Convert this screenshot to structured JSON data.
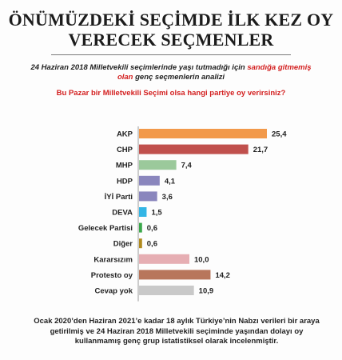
{
  "header": {
    "title_line1": "ÖNÜMÜZDEKİ SEÇİMDE İLK KEZ OY",
    "title_line2": "VERECEK SEÇMENLER",
    "subtitle_part1": "24 Haziran  2018 Milletvekili seçimlerinde yaşı tutmadığı için ",
    "subtitle_highlight": "sandığa gitmemiş olan",
    "subtitle_part2": " genç seçmenlerin analizi",
    "question": "Bu Pazar bir Milletvekili Seçimi olsa hangi partiye oy verirsiniz?"
  },
  "footer": {
    "text": "Ocak 2020’den Haziran 2021’e kadar 18 aylık Türkiye’nin Nabzı verileri bir araya getirilmiş ve 24 Haziran 2018 Milletvekili seçiminde yaşından dolayı oy kullanmamış genç grup istatistiksel olarak incelenmiştir."
  },
  "chart_data": {
    "type": "bar",
    "orientation": "horizontal",
    "categories": [
      "AKP",
      "CHP",
      "MHP",
      "HDP",
      "İYİ Parti",
      "DEVA",
      "Gelecek Partisi",
      "Diğer",
      "Kararsızım",
      "Protesto oy",
      "Cevap yok"
    ],
    "values": [
      25.4,
      21.7,
      7.4,
      4.1,
      3.6,
      1.5,
      0.6,
      0.6,
      10.0,
      14.2,
      10.9
    ],
    "value_labels": [
      "25,4",
      "21,7",
      "7,4",
      "4,1",
      "3,6",
      "1,5",
      "0,6",
      "0,6",
      "10,0",
      "14,2",
      "10,9"
    ],
    "colors": [
      "#f2994a",
      "#c0504d",
      "#9bc99b",
      "#8a86bd",
      "#8a86bd",
      "#33b5e5",
      "#3aa84a",
      "#b08a1e",
      "#e6aeb3",
      "#b8765c",
      "#c9c9c9"
    ],
    "xlim": [
      0,
      25.4
    ],
    "grid": false,
    "legend": "none"
  }
}
